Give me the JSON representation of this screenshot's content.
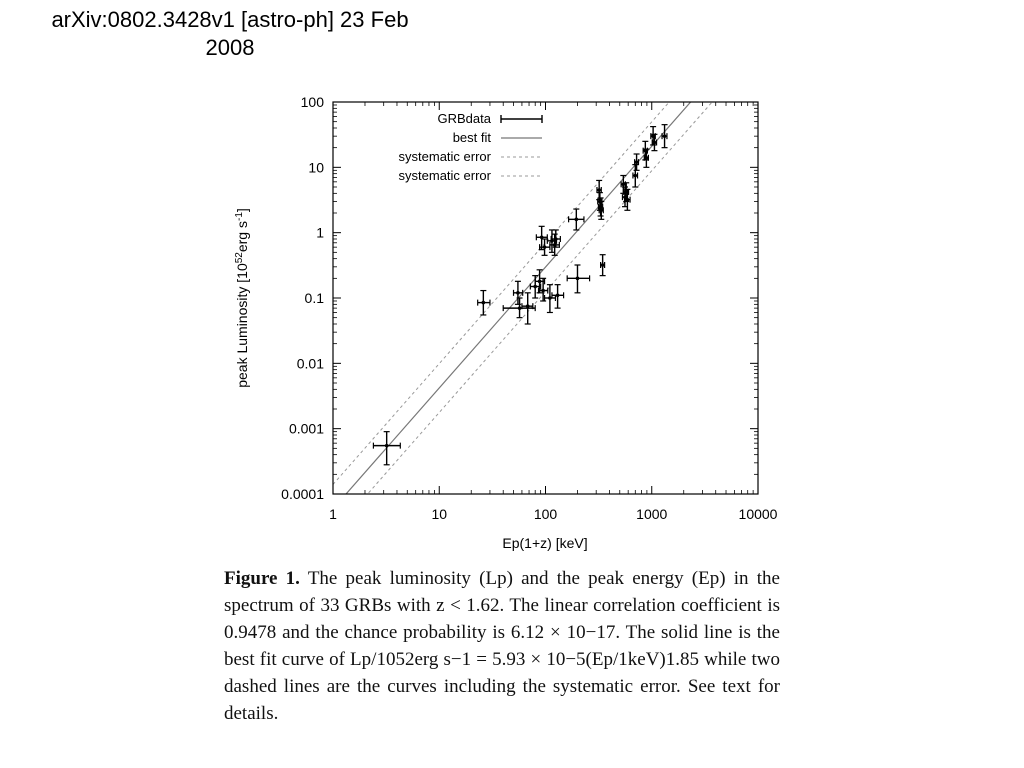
{
  "header": {
    "line1": "arXiv:0802.3428v1 [astro-ph] 23 Feb",
    "line2": "2008"
  },
  "chart_data": {
    "type": "scatter",
    "x_scale": "log",
    "y_scale": "log",
    "xlabel": "Ep(1+z) [keV]",
    "ylabel_main": "peak Luminosity [10",
    "ylabel_sup": "52",
    "ylabel_rest": "erg s",
    "ylabel_sup2": "-1",
    "ylabel_end": "]",
    "xlim": [
      1,
      10000
    ],
    "ylim": [
      0.0001,
      100
    ],
    "x_ticks": [
      "1",
      "10",
      "100",
      "1000",
      "10000"
    ],
    "y_ticks": [
      "0.0001",
      "0.001",
      "0.01",
      "0.1",
      "1",
      "10",
      "100"
    ],
    "legend_position": "top-left",
    "legend": [
      "GRBdata",
      "best fit",
      "systematic error",
      "systematic error"
    ],
    "series": [
      {
        "name": "GRBdata",
        "points": [
          {
            "x": 3.2,
            "y": 0.00055,
            "xerr": [
              2.4,
              4.3
            ],
            "yerr": [
              0.00028,
              0.0009
            ]
          },
          {
            "x": 26,
            "y": 0.085,
            "xerr": [
              23,
              30
            ],
            "yerr": [
              0.055,
              0.13
            ]
          },
          {
            "x": 55,
            "y": 0.12,
            "xerr": [
              50,
              61
            ],
            "yerr": [
              0.08,
              0.18
            ]
          },
          {
            "x": 57,
            "y": 0.07,
            "xerr": [
              40,
              80
            ],
            "yerr": [
              0.05,
              0.1
            ]
          },
          {
            "x": 68,
            "y": 0.075,
            "xerr": [
              60,
              76
            ],
            "yerr": [
              0.04,
              0.12
            ]
          },
          {
            "x": 80,
            "y": 0.15,
            "xerr": [
              72,
              90
            ],
            "yerr": [
              0.1,
              0.22
            ]
          },
          {
            "x": 88,
            "y": 0.18,
            "xerr": [
              80,
              98
            ],
            "yerr": [
              0.12,
              0.27
            ]
          },
          {
            "x": 95,
            "y": 0.13,
            "xerr": [
              86,
              105
            ],
            "yerr": [
              0.09,
              0.2
            ]
          },
          {
            "x": 92,
            "y": 0.85,
            "xerr": [
              82,
              104
            ],
            "yerr": [
              0.55,
              1.25
            ]
          },
          {
            "x": 98,
            "y": 0.6,
            "xerr": [
              88,
              110
            ],
            "yerr": [
              0.45,
              0.8
            ]
          },
          {
            "x": 110,
            "y": 0.1,
            "xerr": [
              98,
              124
            ],
            "yerr": [
              0.06,
              0.16
            ]
          },
          {
            "x": 115,
            "y": 0.75,
            "xerr": [
              104,
              127
            ],
            "yerr": [
              0.5,
              1.1
            ]
          },
          {
            "x": 122,
            "y": 0.65,
            "xerr": [
              110,
              135
            ],
            "yerr": [
              0.45,
              0.95
            ]
          },
          {
            "x": 125,
            "y": 0.8,
            "xerr": [
              113,
              138
            ],
            "yerr": [
              0.6,
              1.1
            ]
          },
          {
            "x": 130,
            "y": 0.11,
            "xerr": [
              115,
              148
            ],
            "yerr": [
              0.07,
              0.16
            ]
          },
          {
            "x": 195,
            "y": 1.6,
            "xerr": [
              165,
              230
            ],
            "yerr": [
              1.1,
              2.3
            ]
          },
          {
            "x": 200,
            "y": 0.2,
            "xerr": [
              160,
              260
            ],
            "yerr": [
              0.12,
              0.32
            ]
          },
          {
            "x": 320,
            "y": 4.5,
            "xerr": [
              305,
              335
            ],
            "yerr": [
              3.2,
              6.3
            ]
          },
          {
            "x": 325,
            "y": 3.0,
            "xerr": [
              310,
              340
            ],
            "yerr": [
              2.2,
              4.1
            ]
          },
          {
            "x": 330,
            "y": 2.5,
            "xerr": [
              315,
              345
            ],
            "yerr": [
              1.8,
              3.4
            ]
          },
          {
            "x": 335,
            "y": 2.2,
            "xerr": [
              320,
              350
            ],
            "yerr": [
              1.6,
              3.0
            ]
          },
          {
            "x": 345,
            "y": 0.32,
            "xerr": [
              330,
              360
            ],
            "yerr": [
              0.22,
              0.46
            ]
          },
          {
            "x": 540,
            "y": 5.5,
            "xerr": [
              515,
              565
            ],
            "yerr": [
              4.0,
              7.5
            ]
          },
          {
            "x": 560,
            "y": 3.5,
            "xerr": [
              530,
              590
            ],
            "yerr": [
              2.5,
              5.0
            ]
          },
          {
            "x": 575,
            "y": 4.2,
            "xerr": [
              545,
              605
            ],
            "yerr": [
              3.0,
              5.8
            ]
          },
          {
            "x": 590,
            "y": 3.2,
            "xerr": [
              555,
              625
            ],
            "yerr": [
              2.2,
              4.6
            ]
          },
          {
            "x": 700,
            "y": 7.5,
            "xerr": [
              665,
              735
            ],
            "yerr": [
              5.0,
              11
            ]
          },
          {
            "x": 720,
            "y": 12,
            "xerr": [
              690,
              750
            ],
            "yerr": [
              9,
              16
            ]
          },
          {
            "x": 870,
            "y": 18,
            "xerr": [
              830,
              910
            ],
            "yerr": [
              13,
              25
            ]
          },
          {
            "x": 890,
            "y": 14,
            "xerr": [
              850,
              930
            ],
            "yerr": [
              10,
              19
            ]
          },
          {
            "x": 1030,
            "y": 30,
            "xerr": [
              980,
              1080
            ],
            "yerr": [
              22,
              42
            ]
          },
          {
            "x": 1060,
            "y": 24,
            "xerr": [
              1010,
              1110
            ],
            "yerr": [
              18,
              32
            ]
          },
          {
            "x": 1320,
            "y": 30,
            "xerr": [
              1250,
              1390
            ],
            "yerr": [
              20,
              45
            ]
          }
        ]
      },
      {
        "name": "best fit",
        "style": "solid",
        "coef": 5.93e-05,
        "exponent": 1.85
      },
      {
        "name": "systematic error",
        "style": "dashed",
        "coef": 0.00014,
        "exponent": 1.85
      },
      {
        "name": "systematic error",
        "style": "dashed",
        "coef": 2.5e-05,
        "exponent": 1.85
      }
    ]
  },
  "caption": {
    "label": "Figure 1.",
    "text": "The peak luminosity (Lp) and the peak energy (Ep) in the spectrum of 33 GRBs with z < 1.62. The linear correlation coefficient is 0.9478 and the chance probability is 6.12 × 10−17. The solid line is the best fit curve of Lp/1052erg s−1 = 5.93 × 10−5(Ep/1keV)1.85 while two dashed lines are the curves including the systematic error. See text for details."
  }
}
